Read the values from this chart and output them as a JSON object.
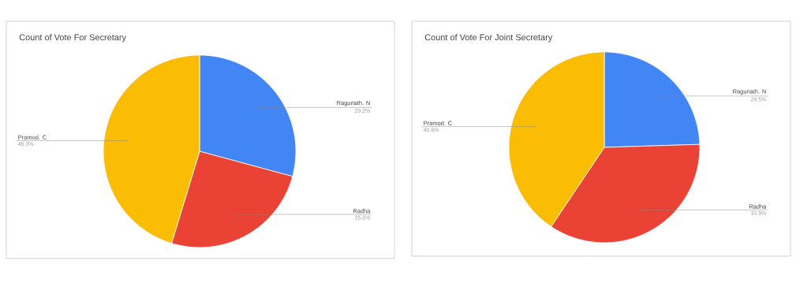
{
  "chart_data": [
    {
      "type": "pie",
      "title": "Count of Vote For Secretary",
      "categories": [
        "Ragunath. N",
        "Radha",
        "Pramod. C"
      ],
      "values": [
        29.2,
        25.5,
        45.3
      ],
      "colors": [
        "#4285f4",
        "#ea4335",
        "#fbbc04"
      ],
      "value_labels": [
        "29.2%",
        "25.5%",
        "45.3%"
      ]
    },
    {
      "type": "pie",
      "title": "Count of Vote For Joint Secretary",
      "categories": [
        "Ragunath. N",
        "Radha",
        "Pramod. C"
      ],
      "values": [
        24.5,
        34.9,
        40.6
      ],
      "colors": [
        "#4285f4",
        "#ea4335",
        "#fbbc04"
      ],
      "value_labels": [
        "24.5%",
        "34.9%",
        "40.6%"
      ]
    }
  ]
}
